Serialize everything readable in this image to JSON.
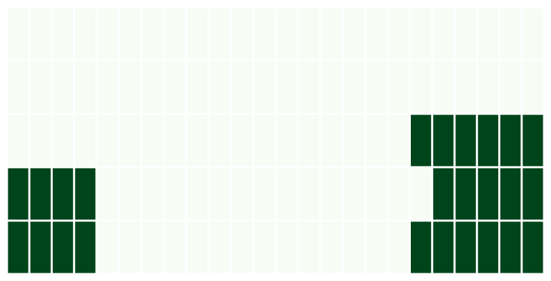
{
  "chart_data": {
    "type": "heatmap",
    "title": "",
    "xlabel": "",
    "ylabel": "",
    "rows": 5,
    "cols": 24,
    "values": [
      [
        0,
        0,
        0,
        0,
        0,
        0,
        0,
        0,
        0,
        0,
        0,
        0,
        0,
        0,
        0,
        0,
        0,
        0,
        0,
        0,
        0,
        0,
        0,
        0
      ],
      [
        0,
        0,
        0,
        0,
        0,
        0,
        0,
        0,
        0,
        0,
        0,
        0,
        0,
        0,
        0,
        0,
        0,
        0,
        0,
        0,
        0,
        0,
        0,
        0
      ],
      [
        0,
        0,
        0,
        0,
        0,
        0,
        0,
        0,
        0,
        0,
        0,
        0,
        0,
        0,
        0,
        0,
        0,
        0,
        1,
        1,
        1,
        1,
        1,
        1
      ],
      [
        1,
        1,
        1,
        1,
        0,
        0,
        0,
        0,
        0,
        0,
        0,
        0,
        0,
        0,
        0,
        0,
        0,
        0,
        0,
        1,
        1,
        1,
        1,
        1
      ],
      [
        1,
        1,
        1,
        1,
        0,
        0,
        0,
        0,
        0,
        0,
        0,
        0,
        0,
        0,
        0,
        0,
        0,
        0,
        1,
        1,
        1,
        1,
        1,
        1
      ]
    ],
    "colors": {
      "low": "#f7fcf5",
      "high": "#00441b",
      "gap": "#ffffff"
    },
    "grid": true,
    "legend": "none"
  }
}
